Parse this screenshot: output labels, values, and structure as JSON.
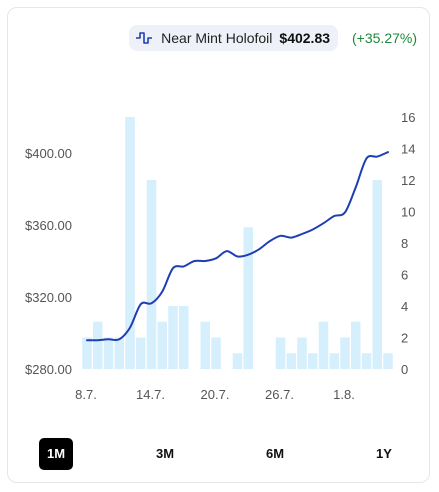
{
  "legend": {
    "name": "Near Mint Holofoil",
    "price": "$402.83",
    "change": "(+35.27%)",
    "icon": "pulse-line-icon",
    "line_color": "#1e3eb4",
    "change_color": "#1e8a3b"
  },
  "range_buttons": [
    {
      "label": "1M",
      "active": true
    },
    {
      "label": "3M",
      "active": false
    },
    {
      "label": "6M",
      "active": false
    },
    {
      "label": "1Y",
      "active": false
    }
  ],
  "chart_data": {
    "type": "line",
    "x_tick_labels": [
      "8.7.",
      "14.7.",
      "20.7.",
      "26.7.",
      "1.8."
    ],
    "x_tick_positions": [
      0,
      6,
      12,
      18,
      24
    ],
    "left_axis": {
      "ylim": [
        280,
        420
      ],
      "ticks": [
        "$280.00",
        "$320.00",
        "$360.00",
        "$400.00"
      ],
      "tick_values": [
        280,
        320,
        360,
        400
      ]
    },
    "right_axis": {
      "ylim": [
        0,
        16
      ],
      "ticks": [
        "0",
        "2",
        "4",
        "6",
        "8",
        "10",
        "12",
        "14",
        "16"
      ],
      "tick_values": [
        0,
        2,
        4,
        6,
        8,
        10,
        12,
        14,
        16
      ]
    },
    "grid": false,
    "series": [
      {
        "name": "Near Mint Holofoil",
        "kind": "line",
        "axis": "left",
        "color": "#1e3eb4",
        "x": [
          0,
          1,
          2,
          3,
          4,
          5,
          6,
          7,
          8,
          9,
          10,
          11,
          12,
          13,
          14,
          15,
          16,
          17,
          18,
          19,
          20,
          21,
          22,
          23,
          24,
          25,
          26,
          27,
          28
        ],
        "values": [
          296,
          296,
          296.5,
          296.5,
          303,
          316,
          316.5,
          323,
          336,
          337,
          340,
          340,
          341.5,
          345.5,
          342.5,
          343.5,
          346.5,
          351,
          354,
          353,
          355,
          357.5,
          361,
          365,
          367,
          381,
          397,
          398,
          400.5
        ]
      },
      {
        "kind": "bar",
        "axis": "right",
        "color": "#d6effc",
        "x": [
          0,
          1,
          2,
          3,
          4,
          5,
          6,
          7,
          8,
          9,
          10,
          11,
          12,
          13,
          14,
          15,
          16,
          17,
          18,
          19,
          20,
          21,
          22,
          23,
          24,
          25,
          26,
          27,
          28
        ],
        "values": [
          2,
          3,
          2,
          2,
          16,
          2,
          12,
          3,
          4,
          4,
          0,
          3,
          2,
          0,
          1,
          9,
          0,
          0,
          2,
          1,
          2,
          1,
          3,
          1,
          2,
          3,
          1,
          12,
          1
        ]
      }
    ]
  }
}
